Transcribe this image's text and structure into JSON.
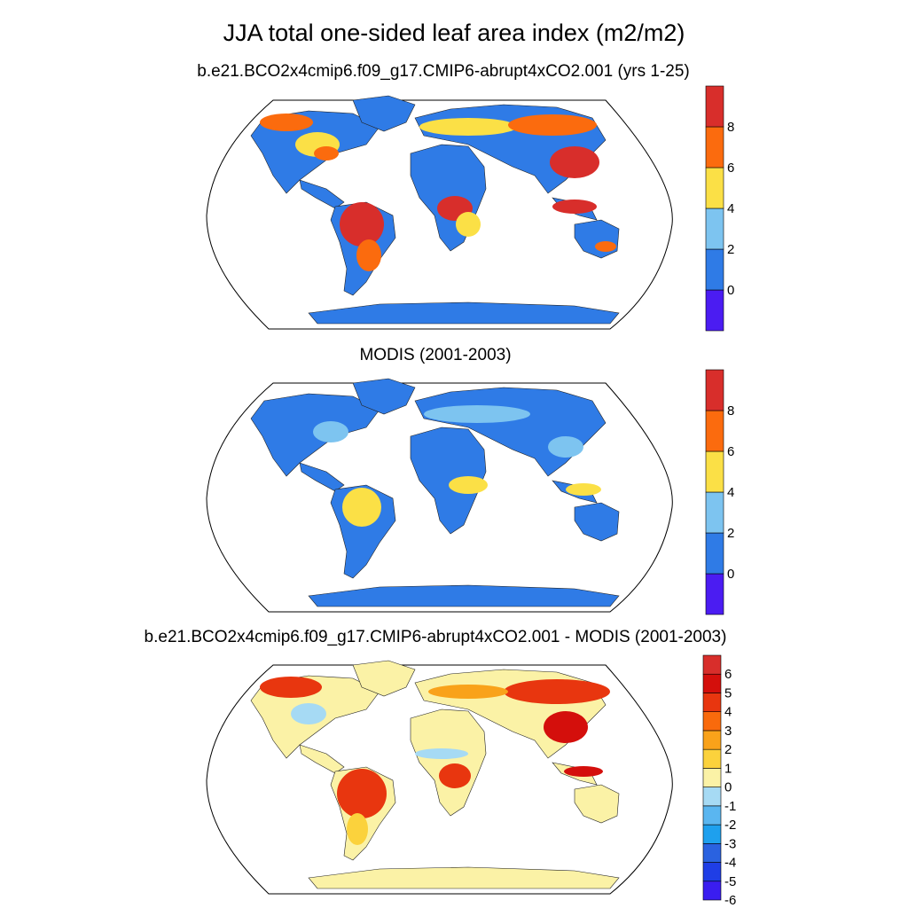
{
  "title": "JJA total one-sided leaf area index (m2/m2)",
  "panels": [
    {
      "subtitle": "b.e21.BCO2x4cmip6.f09_g17.CMIP6-abrupt4xCO2.001 (yrs 1-25)",
      "colorbar": {
        "colors": [
          "#4b1cf2",
          "#2f7be6",
          "#7dc4f0",
          "#fbe046",
          "#fb6b0e",
          "#d82e2b"
        ],
        "labels": [
          "0",
          "2",
          "4",
          "6",
          "8"
        ]
      }
    },
    {
      "subtitle": "MODIS (2001-2003)",
      "colorbar": {
        "colors": [
          "#4b1cf2",
          "#2f7be6",
          "#7dc4f0",
          "#fbe046",
          "#fb6b0e",
          "#d82e2b"
        ],
        "labels": [
          "0",
          "2",
          "4",
          "6",
          "8"
        ]
      }
    },
    {
      "subtitle": "b.e21.BCO2x4cmip6.f09_g17.CMIP6-abrupt4xCO2.001 - MODIS (2001-2003)",
      "colorbar": {
        "colors": [
          "#3a1df0",
          "#1f3ee6",
          "#2a62e0",
          "#1ea0ee",
          "#5ab6f0",
          "#a6daf4",
          "#fbf2a6",
          "#fbd23c",
          "#f9a21a",
          "#f96a0c",
          "#e8360f",
          "#d40f0c",
          "#d82e2b"
        ],
        "labels": [
          "6",
          "5",
          "4",
          "3",
          "2",
          "1",
          "0",
          "-1",
          "-2",
          "-3",
          "-4",
          "-5",
          "-6"
        ]
      }
    }
  ]
}
